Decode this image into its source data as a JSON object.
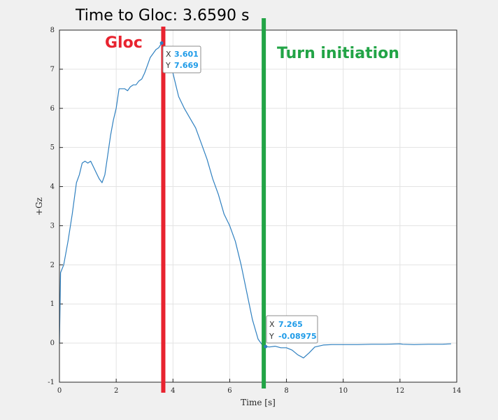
{
  "chart_data": {
    "type": "line",
    "title": "Time to Gloc: 3.6590 s",
    "xlabel": "Time [s]",
    "ylabel": "+Gz",
    "xlim": [
      0,
      14
    ],
    "ylim": [
      -1,
      8
    ],
    "xticks": [
      "0",
      "2",
      "4",
      "6",
      "8",
      "10",
      "12",
      "14"
    ],
    "yticks": [
      "-1",
      "0",
      "1",
      "2",
      "3",
      "4",
      "5",
      "6",
      "7",
      "8"
    ],
    "grid": true,
    "series": [
      {
        "color": "#2f80c0",
        "x": [
          0,
          0.04,
          0.15,
          0.3,
          0.45,
          0.6,
          0.7,
          0.8,
          0.9,
          1.0,
          1.1,
          1.2,
          1.3,
          1.4,
          1.5,
          1.6,
          1.7,
          1.8,
          1.9,
          2.0,
          2.1,
          2.2,
          2.3,
          2.4,
          2.5,
          2.6,
          2.7,
          2.8,
          2.9,
          3.0,
          3.1,
          3.2,
          3.3,
          3.4,
          3.5,
          3.601,
          3.7,
          3.8,
          3.9,
          4.0,
          4.1,
          4.2,
          4.4,
          4.6,
          4.8,
          5.0,
          5.2,
          5.4,
          5.6,
          5.8,
          6.0,
          6.2,
          6.4,
          6.6,
          6.8,
          7.0,
          7.15,
          7.265,
          7.4,
          7.6,
          7.8,
          8.0,
          8.2,
          8.4,
          8.6,
          8.8,
          9.0,
          9.3,
          9.6,
          10,
          10.5,
          11,
          11.5,
          12,
          12.1,
          12.5,
          13,
          13.5,
          13.8
        ],
        "y": [
          0.0,
          1.8,
          2.0,
          2.6,
          3.3,
          4.1,
          4.3,
          4.6,
          4.65,
          4.6,
          4.65,
          4.5,
          4.35,
          4.2,
          4.1,
          4.3,
          4.8,
          5.3,
          5.7,
          6.0,
          6.5,
          6.5,
          6.5,
          6.45,
          6.55,
          6.6,
          6.6,
          6.7,
          6.75,
          6.9,
          7.1,
          7.3,
          7.4,
          7.5,
          7.55,
          7.669,
          7.55,
          7.3,
          7.1,
          6.9,
          6.6,
          6.3,
          6.0,
          5.75,
          5.5,
          5.1,
          4.7,
          4.2,
          3.8,
          3.3,
          3.0,
          2.6,
          2.0,
          1.3,
          0.6,
          0.1,
          -0.05,
          -0.08975,
          -0.1,
          -0.08,
          -0.12,
          -0.12,
          -0.18,
          -0.3,
          -0.38,
          -0.25,
          -0.1,
          -0.05,
          -0.04,
          -0.04,
          -0.04,
          -0.03,
          -0.03,
          -0.02,
          -0.03,
          -0.04,
          -0.03,
          -0.03,
          -0.02
        ]
      }
    ],
    "datatips": [
      {
        "x_key": "X",
        "x_value": "3.601",
        "y_key": "Y",
        "y_value": "7.669"
      },
      {
        "x_key": "X",
        "x_value": "7.265",
        "y_key": "Y",
        "y_value": "-0.08975"
      }
    ],
    "annotations": [
      {
        "text": "Gloc",
        "color": "#e8232f"
      },
      {
        "text": "Turn initiation",
        "color": "#22a446"
      }
    ],
    "vertical_lines": [
      {
        "x": 3.659,
        "color": "#e8232f"
      },
      {
        "x": 7.2,
        "color": "#22a446"
      }
    ]
  }
}
